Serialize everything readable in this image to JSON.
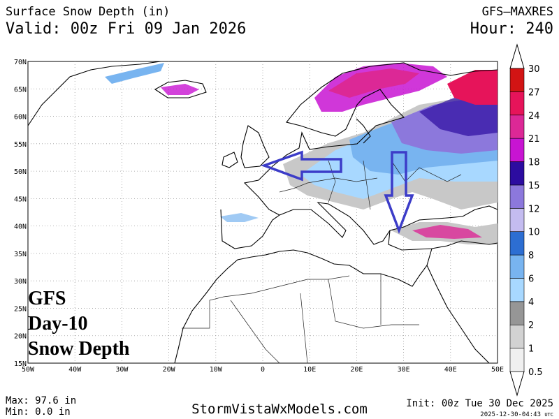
{
  "header": {
    "title": "Surface Snow Depth (in)",
    "valid": "Valid: 00z Fri 09 Jan 2026",
    "model": "GFS—MAXRES",
    "hour": "Hour: 240"
  },
  "map": {
    "lat_labels": [
      "15N",
      "20N",
      "25N",
      "30N",
      "35N",
      "40N",
      "45N",
      "50N",
      "55N",
      "60N",
      "65N",
      "70N"
    ],
    "lon_labels": [
      "50W",
      "40W",
      "30W",
      "20W",
      "10W",
      "0",
      "10E",
      "20E",
      "30E",
      "40E",
      "50E"
    ]
  },
  "overlay": [
    "GFS",
    "Day-10",
    "Snow Depth"
  ],
  "colorbar": {
    "labels": [
      0.5,
      1,
      2,
      4,
      6,
      8,
      10,
      12,
      15,
      18,
      21,
      24,
      27,
      30
    ],
    "colors": [
      "#f0f0f0",
      "#d2d2d2",
      "#969696",
      "#a8d8ff",
      "#78b4f0",
      "#2d6ed2",
      "#c4bcf0",
      "#8c78dc",
      "#2c0ca0",
      "#c814d2",
      "#dc2896",
      "#e6145a",
      "#d21414"
    ]
  },
  "footer": {
    "max": "Max: 97.6 in",
    "min": "Min: 0.0 in",
    "site": "StormVistaWxModels.com",
    "init": "Init: 00z Tue 30 Dec 2025",
    "stamp": "2025-12-30-04:43",
    "utc": "UTC"
  }
}
